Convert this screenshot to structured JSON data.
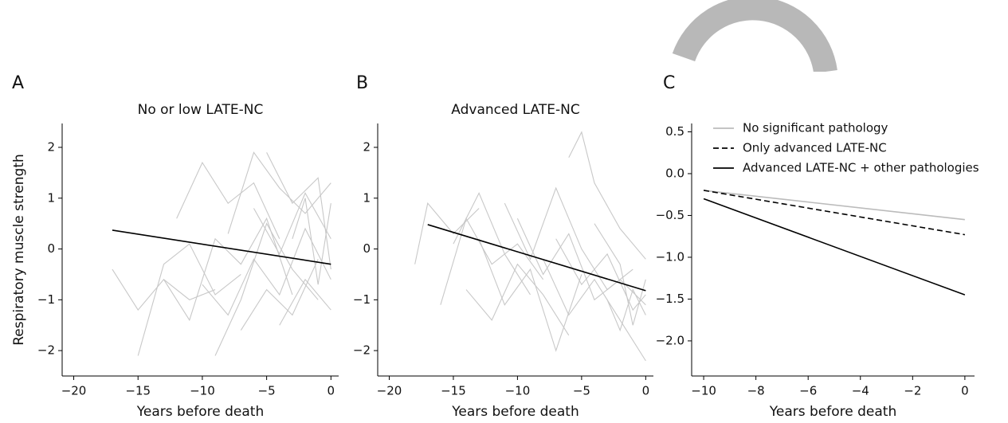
{
  "chart_data": [
    {
      "type": "line",
      "panel_label": "A",
      "title": "No or low LATE-NC",
      "xlabel": "Years before death",
      "ylabel": "Respiratory muscle strength",
      "xlim": [
        -20.9,
        0.6
      ],
      "ylim": [
        -2.5,
        2.47
      ],
      "xticks": [
        {
          "value": -20,
          "label": "−20"
        },
        {
          "value": -15,
          "label": "−15"
        },
        {
          "value": -10,
          "label": "−10"
        },
        {
          "value": -5,
          "label": "−5"
        },
        0
      ],
      "yticks": [
        {
          "value": -2,
          "label": "−2"
        },
        {
          "value": -1,
          "label": "−1"
        },
        0,
        1,
        2
      ],
      "series": [
        {
          "color": "#c8c8c8",
          "x": [
            -17,
            -15,
            -13,
            -11,
            -9
          ],
          "values": [
            -0.4,
            -1.2,
            -0.6,
            -1.0,
            -0.8
          ]
        },
        {
          "color": "#c8c8c8",
          "x": [
            -15,
            -13,
            -11,
            -9,
            -7
          ],
          "values": [
            -2.1,
            -0.3,
            0.1,
            -0.9,
            -0.5
          ]
        },
        {
          "color": "#c8c8c8",
          "x": [
            -12,
            -10,
            -8,
            -6,
            -4
          ],
          "values": [
            0.6,
            1.7,
            0.9,
            1.3,
            0.2
          ]
        },
        {
          "color": "#c8c8c8",
          "x": [
            -10,
            -8,
            -6,
            -4,
            -2,
            0
          ],
          "values": [
            -0.7,
            -1.3,
            -0.2,
            -0.9,
            0.4,
            -0.6
          ]
        },
        {
          "color": "#c8c8c8",
          "x": [
            -8,
            -6,
            -4,
            -2,
            0
          ],
          "values": [
            0.3,
            1.9,
            1.2,
            0.7,
            1.3
          ]
        },
        {
          "color": "#c8c8c8",
          "x": [
            -7,
            -5,
            -3,
            -1
          ],
          "values": [
            -1.6,
            -0.8,
            -1.3,
            -0.2
          ]
        },
        {
          "color": "#c8c8c8",
          "x": [
            -6,
            -4,
            -2,
            0
          ],
          "values": [
            0.8,
            -0.1,
            1.1,
            0.2
          ]
        },
        {
          "color": "#c8c8c8",
          "x": [
            -9,
            -7,
            -5,
            -3,
            -1
          ],
          "values": [
            -2.1,
            -1.0,
            0.5,
            -0.4,
            -1.0
          ]
        },
        {
          "color": "#c8c8c8",
          "x": [
            -5,
            -3,
            -1,
            0
          ],
          "values": [
            1.9,
            0.9,
            1.4,
            -0.4
          ]
        },
        {
          "color": "#c8c8c8",
          "x": [
            -4,
            -2,
            0
          ],
          "values": [
            -1.5,
            -0.6,
            -1.2
          ]
        },
        {
          "color": "#c8c8c8",
          "x": [
            -13,
            -11,
            -9,
            -7,
            -5,
            -3
          ],
          "values": [
            -0.6,
            -1.4,
            0.2,
            -0.3,
            0.6,
            -0.9
          ]
        },
        {
          "color": "#c8c8c8",
          "x": [
            -3,
            -2,
            -1,
            0
          ],
          "values": [
            0.2,
            1.0,
            -0.7,
            0.9
          ]
        },
        {
          "color": "#000000",
          "x": [
            -17,
            0
          ],
          "values": [
            0.37,
            -0.3
          ]
        }
      ]
    },
    {
      "type": "line",
      "panel_label": "B",
      "title": "Advanced LATE-NC",
      "xlabel": "Years before death",
      "xlim": [
        -20.9,
        0.6
      ],
      "ylim": [
        -2.5,
        2.47
      ],
      "xticks": [
        {
          "value": -20,
          "label": "−20"
        },
        {
          "value": -15,
          "label": "−15"
        },
        {
          "value": -10,
          "label": "−10"
        },
        {
          "value": -5,
          "label": "−5"
        },
        0
      ],
      "yticks": [
        {
          "value": -2,
          "label": "−2"
        },
        {
          "value": -1,
          "label": "−1"
        },
        0,
        1,
        2
      ],
      "series": [
        {
          "color": "#c8c8c8",
          "x": [
            -18,
            -17,
            -15,
            -13
          ],
          "values": [
            -0.3,
            0.9,
            0.3,
            0.8
          ]
        },
        {
          "color": "#c8c8c8",
          "x": [
            -16,
            -14,
            -12,
            -10,
            -8
          ],
          "values": [
            -1.1,
            0.6,
            -0.3,
            0.1,
            -0.6
          ]
        },
        {
          "color": "#c8c8c8",
          "x": [
            -13,
            -11,
            -9,
            -7,
            -5
          ],
          "values": [
            0.2,
            -1.1,
            -0.4,
            -2.0,
            -0.5
          ]
        },
        {
          "color": "#c8c8c8",
          "x": [
            -6,
            -5,
            -4,
            -2,
            0
          ],
          "values": [
            1.8,
            2.3,
            1.3,
            0.4,
            -0.2
          ]
        },
        {
          "color": "#c8c8c8",
          "x": [
            -10,
            -8,
            -6,
            -4,
            -2,
            0
          ],
          "values": [
            0.6,
            -0.5,
            0.3,
            -1.0,
            -0.6,
            -1.1
          ]
        },
        {
          "color": "#c8c8c8",
          "x": [
            -8,
            -6,
            -4,
            -2,
            0
          ],
          "values": [
            -0.2,
            -1.3,
            -0.6,
            -1.4,
            -2.2
          ]
        },
        {
          "color": "#c8c8c8",
          "x": [
            -14,
            -12,
            -10,
            -8,
            -6
          ],
          "values": [
            -0.8,
            -1.4,
            -0.3,
            -0.9,
            -1.7
          ]
        },
        {
          "color": "#c8c8c8",
          "x": [
            -11,
            -9,
            -7,
            -5,
            -3,
            -1
          ],
          "values": [
            0.9,
            -0.2,
            1.2,
            0.0,
            -0.8,
            -0.4
          ]
        },
        {
          "color": "#c8c8c8",
          "x": [
            -4,
            -2,
            -1,
            0
          ],
          "values": [
            0.5,
            -0.3,
            -1.5,
            -0.6
          ]
        },
        {
          "color": "#c8c8c8",
          "x": [
            -7,
            -5,
            -3,
            -1,
            0
          ],
          "values": [
            0.2,
            -0.7,
            -0.1,
            -1.2,
            -0.9
          ]
        },
        {
          "color": "#c8c8c8",
          "x": [
            -15,
            -13,
            -11,
            -9
          ],
          "values": [
            0.1,
            1.1,
            -0.1,
            -0.9
          ]
        },
        {
          "color": "#c8c8c8",
          "x": [
            -3,
            -2,
            -1,
            0
          ],
          "values": [
            -1.0,
            -1.6,
            -0.8,
            -1.3
          ]
        },
        {
          "color": "#000000",
          "x": [
            -17,
            0
          ],
          "values": [
            0.48,
            -0.82
          ]
        }
      ]
    },
    {
      "type": "line",
      "panel_label": "C",
      "xlabel": "Years before death",
      "xlim": [
        -10.46,
        0.37
      ],
      "ylim": [
        -2.42,
        0.6
      ],
      "xticks": [
        {
          "value": -10,
          "label": "−10"
        },
        {
          "value": -8,
          "label": "−8"
        },
        {
          "value": -6,
          "label": "−6"
        },
        {
          "value": -4,
          "label": "−4"
        },
        {
          "value": -2,
          "label": "−2"
        },
        0
      ],
      "yticks": [
        {
          "value": -2,
          "label": "−2.0"
        },
        {
          "value": -1.5,
          "label": "−1.5"
        },
        {
          "value": -1,
          "label": "−1.0"
        },
        {
          "value": -0.5,
          "label": "−0.5"
        },
        {
          "value": 0,
          "label": "0.0"
        },
        0.5
      ],
      "legend": "upper left",
      "series": [
        {
          "name": "No significant pathology",
          "color": "#bbbbbb",
          "dash": "solid",
          "x": [
            -10,
            0
          ],
          "values": [
            -0.2,
            -0.55
          ]
        },
        {
          "name": "Only advanced LATE-NC",
          "color": "#000000",
          "dash": "dashed",
          "x": [
            -10,
            0
          ],
          "values": [
            -0.2,
            -0.73
          ]
        },
        {
          "name": "Advanced LATE-NC + other pathologies",
          "color": "#000000",
          "dash": "solid",
          "x": [
            -10,
            0
          ],
          "values": [
            -0.3,
            -1.45
          ]
        }
      ]
    }
  ]
}
